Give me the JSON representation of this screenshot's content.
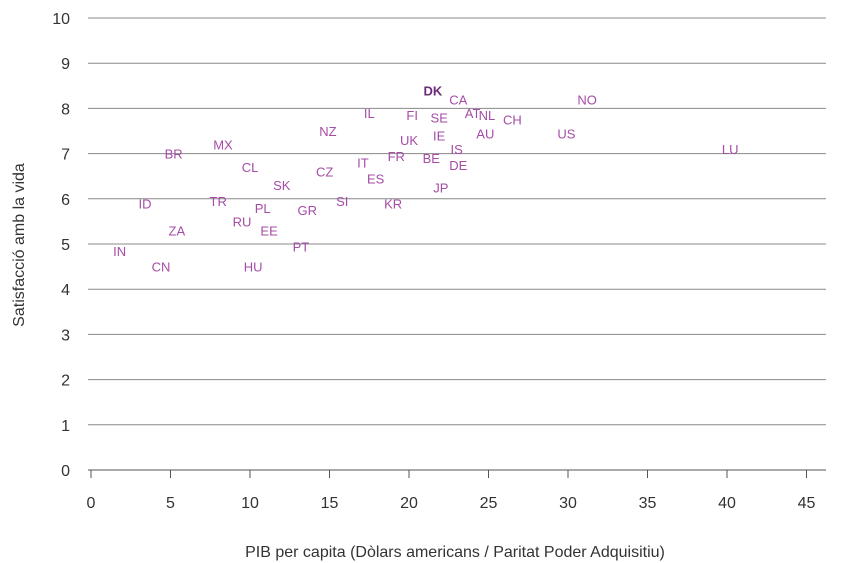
{
  "colors": {
    "points": "#a64ca6",
    "highlight": "#6e2a7a",
    "grid": "#888888",
    "text": "#333333"
  },
  "chart_data": {
    "type": "scatter",
    "title": "",
    "xlabel": "PIB per capita (Dòlars americans / Paritat Poder Adquisitiu)",
    "ylabel": "Satisfacció amb la vida",
    "xlim": [
      0,
      47
    ],
    "ylim": [
      0,
      10
    ],
    "xticks": [
      0,
      5,
      10,
      15,
      20,
      25,
      30,
      35,
      40,
      45
    ],
    "yticks": [
      0,
      1,
      2,
      3,
      4,
      5,
      6,
      7,
      8,
      9,
      10
    ],
    "grid": "horizontal",
    "points": [
      {
        "label": "DK",
        "x": 21.5,
        "y": 8.4,
        "highlight": true
      },
      {
        "label": "CA",
        "x": 23.1,
        "y": 8.2
      },
      {
        "label": "NO",
        "x": 31.2,
        "y": 8.2
      },
      {
        "label": "AT",
        "x": 24.0,
        "y": 7.9
      },
      {
        "label": "NL",
        "x": 24.9,
        "y": 7.85
      },
      {
        "label": "IL",
        "x": 17.5,
        "y": 7.9
      },
      {
        "label": "FI",
        "x": 20.2,
        "y": 7.85
      },
      {
        "label": "SE",
        "x": 21.9,
        "y": 7.8
      },
      {
        "label": "CH",
        "x": 26.5,
        "y": 7.75
      },
      {
        "label": "NZ",
        "x": 14.9,
        "y": 7.5
      },
      {
        "label": "AU",
        "x": 24.8,
        "y": 7.45
      },
      {
        "label": "US",
        "x": 29.9,
        "y": 7.45
      },
      {
        "label": "IE",
        "x": 21.9,
        "y": 7.4
      },
      {
        "label": "UK",
        "x": 20.0,
        "y": 7.3
      },
      {
        "label": "MX",
        "x": 8.3,
        "y": 7.2
      },
      {
        "label": "IS",
        "x": 23.0,
        "y": 7.1
      },
      {
        "label": "LU",
        "x": 40.2,
        "y": 7.1
      },
      {
        "label": "BR",
        "x": 5.2,
        "y": 7.0
      },
      {
        "label": "FR",
        "x": 19.2,
        "y": 6.95
      },
      {
        "label": "BE",
        "x": 21.4,
        "y": 6.9
      },
      {
        "label": "IT",
        "x": 17.1,
        "y": 6.8
      },
      {
        "label": "CL",
        "x": 10.0,
        "y": 6.7
      },
      {
        "label": "DE",
        "x": 23.1,
        "y": 6.75
      },
      {
        "label": "CZ",
        "x": 14.7,
        "y": 6.6
      },
      {
        "label": "ES",
        "x": 17.9,
        "y": 6.45
      },
      {
        "label": "SK",
        "x": 12.0,
        "y": 6.3
      },
      {
        "label": "JP",
        "x": 22.0,
        "y": 6.25
      },
      {
        "label": "KR",
        "x": 19.0,
        "y": 5.9
      },
      {
        "label": "SI",
        "x": 15.8,
        "y": 5.95
      },
      {
        "label": "ID",
        "x": 3.4,
        "y": 5.9
      },
      {
        "label": "TR",
        "x": 8.0,
        "y": 5.95
      },
      {
        "label": "PL",
        "x": 10.8,
        "y": 5.8
      },
      {
        "label": "GR",
        "x": 13.6,
        "y": 5.75
      },
      {
        "label": "RU",
        "x": 9.5,
        "y": 5.5
      },
      {
        "label": "ZA",
        "x": 5.4,
        "y": 5.3
      },
      {
        "label": "EE",
        "x": 11.2,
        "y": 5.3
      },
      {
        "label": "PT",
        "x": 13.2,
        "y": 4.95
      },
      {
        "label": "IN",
        "x": 1.8,
        "y": 4.85
      },
      {
        "label": "CN",
        "x": 4.4,
        "y": 4.5
      },
      {
        "label": "HU",
        "x": 10.2,
        "y": 4.5
      }
    ]
  }
}
